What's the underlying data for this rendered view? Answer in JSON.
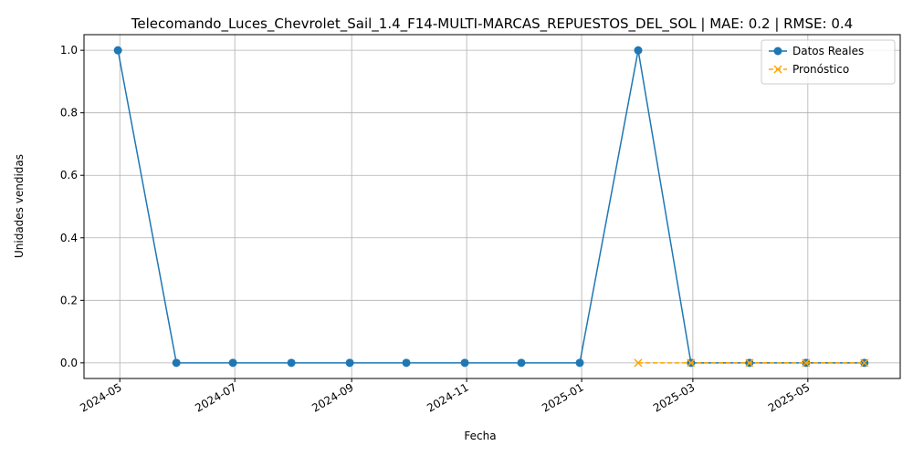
{
  "chart_data": {
    "type": "line",
    "title": "Telecomando_Luces_Chevrolet_Sail_1.4_F14-MULTI-MARCAS_REPUESTOS_DEL_SOL | MAE: 0.2 | RMSE: 0.4",
    "xlabel": "Fecha",
    "ylabel": "Unidades vendidas",
    "x_ticks": [
      "2024-05",
      "2024-07",
      "2024-09",
      "2024-11",
      "2025-01",
      "2025-03",
      "2025-05"
    ],
    "y_ticks": [
      "0.0",
      "0.2",
      "0.4",
      "0.6",
      "0.8",
      "1.0"
    ],
    "xlim": [
      "2024-04-12",
      "2025-06-19"
    ],
    "ylim": [
      -0.05,
      1.05
    ],
    "grid": true,
    "legend_position": "top-right",
    "series": [
      {
        "name": "Datos Reales",
        "color": "#1f77b4",
        "marker": "circle",
        "line_style": "solid",
        "points": [
          {
            "x": "2024-04-30",
            "y": 1
          },
          {
            "x": "2024-05-31",
            "y": 0
          },
          {
            "x": "2024-06-30",
            "y": 0
          },
          {
            "x": "2024-07-31",
            "y": 0
          },
          {
            "x": "2024-08-31",
            "y": 0
          },
          {
            "x": "2024-09-30",
            "y": 0
          },
          {
            "x": "2024-10-31",
            "y": 0
          },
          {
            "x": "2024-11-30",
            "y": 0
          },
          {
            "x": "2024-12-31",
            "y": 0
          },
          {
            "x": "2025-01-31",
            "y": 1
          },
          {
            "x": "2025-02-28",
            "y": 0
          },
          {
            "x": "2025-03-31",
            "y": 0
          },
          {
            "x": "2025-04-30",
            "y": 0
          },
          {
            "x": "2025-05-31",
            "y": 0
          }
        ]
      },
      {
        "name": "Pronóstico",
        "color": "#ffa500",
        "marker": "x",
        "line_style": "dashed",
        "points": [
          {
            "x": "2025-01-31",
            "y": 0
          },
          {
            "x": "2025-02-28",
            "y": 0
          },
          {
            "x": "2025-03-31",
            "y": 0
          },
          {
            "x": "2025-04-30",
            "y": 0
          },
          {
            "x": "2025-05-31",
            "y": 0
          }
        ]
      }
    ]
  }
}
